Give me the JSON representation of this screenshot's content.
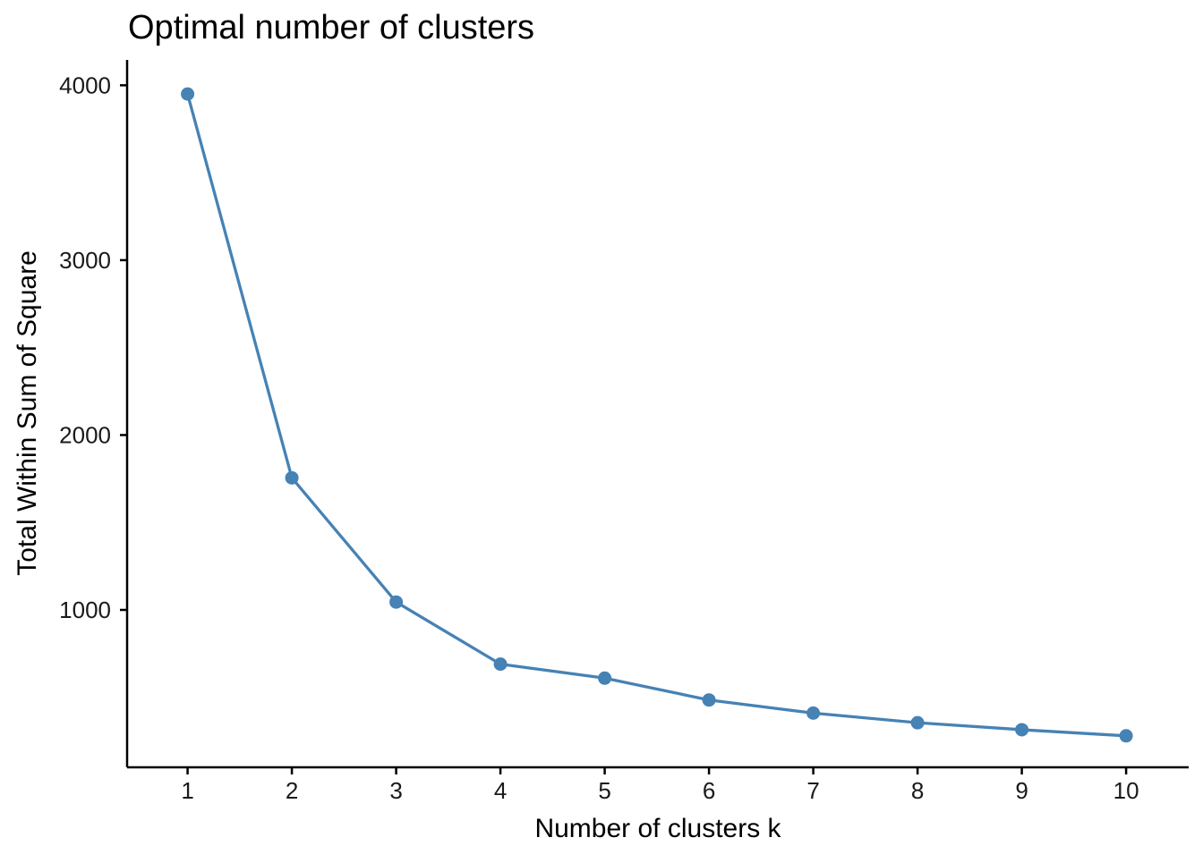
{
  "page": {
    "background_color": "#ffffff"
  },
  "chart_data": {
    "type": "line",
    "title": "Optimal number of clusters",
    "xlabel": "Number of clusters k",
    "ylabel": "Total Within Sum of Square",
    "series": [
      {
        "name": "total-within-sum-of-square",
        "x": [
          1,
          2,
          3,
          4,
          5,
          6,
          7,
          8,
          9,
          10
        ],
        "values": [
          3950,
          1755,
          1045,
          690,
          610,
          485,
          410,
          355,
          315,
          280
        ]
      }
    ],
    "xticks": [
      "1",
      "2",
      "3",
      "4",
      "5",
      "6",
      "7",
      "8",
      "9",
      "10"
    ],
    "xtick_values": [
      1,
      2,
      3,
      4,
      5,
      6,
      7,
      8,
      9,
      10
    ],
    "yticks": [
      "1000",
      "2000",
      "3000",
      "4000"
    ],
    "ytick_values": [
      1000,
      2000,
      3000,
      4000
    ],
    "xlim": [
      0.42,
      10.6
    ],
    "ylim": [
      100,
      4145
    ],
    "grid": false,
    "legend_position": "none",
    "line_color": "#4682B4",
    "point_color": "#4682B4",
    "axis_color": "#000000"
  }
}
